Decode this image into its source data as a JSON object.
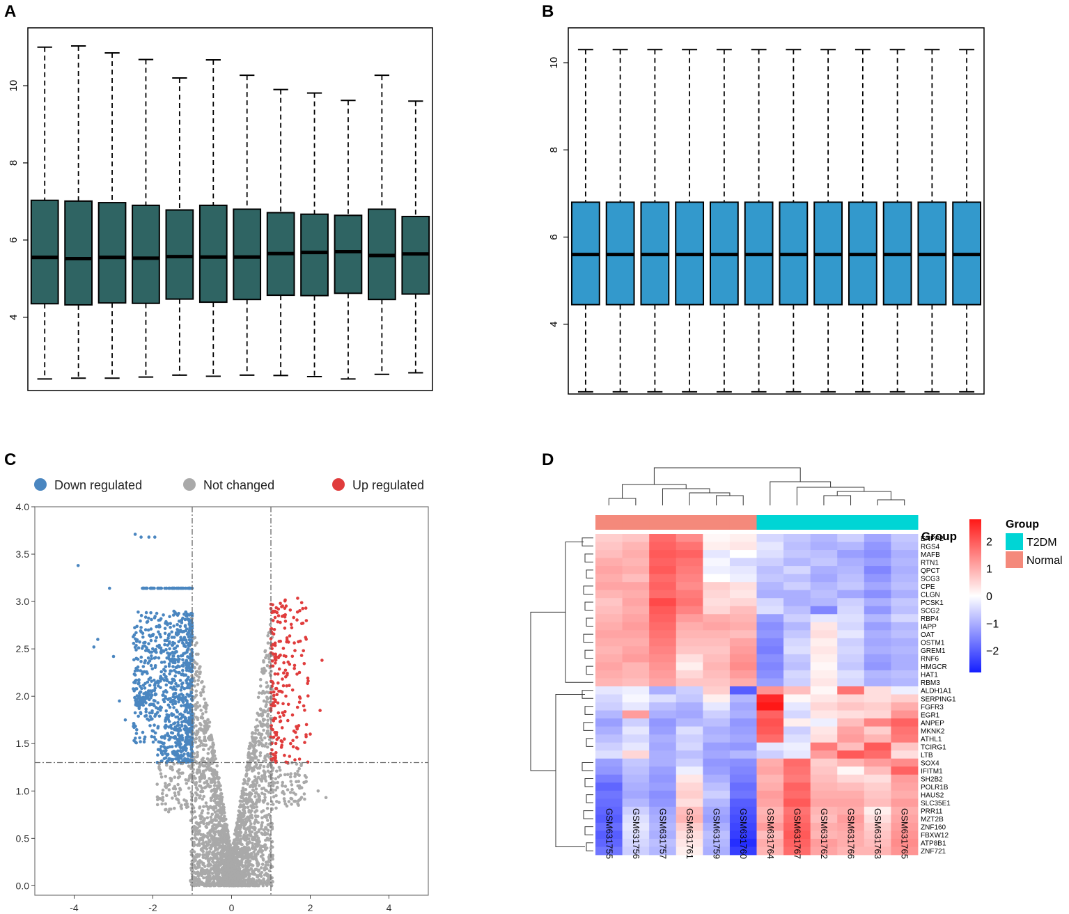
{
  "panels": {
    "a": "A",
    "b": "B",
    "c": "C",
    "d": "D"
  },
  "chart_data": [
    {
      "panel": "A",
      "type": "box",
      "title": "",
      "xlabel": "",
      "ylabel": "",
      "ylim": [
        2.1,
        11.5
      ],
      "yticks": [
        "4",
        "6",
        "8",
        "10"
      ],
      "box_color": "#2f6463",
      "boxes": [
        {
          "min": 2.4,
          "q1": 4.35,
          "median": 5.55,
          "q3": 7.03,
          "max": 11.0
        },
        {
          "min": 2.42,
          "q1": 4.32,
          "median": 5.52,
          "q3": 7.01,
          "max": 11.03
        },
        {
          "min": 2.42,
          "q1": 4.37,
          "median": 5.55,
          "q3": 6.97,
          "max": 10.85
        },
        {
          "min": 2.45,
          "q1": 4.36,
          "median": 5.53,
          "q3": 6.9,
          "max": 10.68
        },
        {
          "min": 2.5,
          "q1": 4.47,
          "median": 5.57,
          "q3": 6.78,
          "max": 10.2
        },
        {
          "min": 2.47,
          "q1": 4.39,
          "median": 5.56,
          "q3": 6.9,
          "max": 10.67
        },
        {
          "min": 2.5,
          "q1": 4.46,
          "median": 5.56,
          "q3": 6.8,
          "max": 10.27
        },
        {
          "min": 2.49,
          "q1": 4.57,
          "median": 5.65,
          "q3": 6.71,
          "max": 9.9
        },
        {
          "min": 2.46,
          "q1": 4.56,
          "median": 5.68,
          "q3": 6.67,
          "max": 9.81
        },
        {
          "min": 2.4,
          "q1": 4.62,
          "median": 5.7,
          "q3": 6.64,
          "max": 9.62
        },
        {
          "min": 2.52,
          "q1": 4.46,
          "median": 5.6,
          "q3": 6.8,
          "max": 10.27
        },
        {
          "min": 2.56,
          "q1": 4.6,
          "median": 5.64,
          "q3": 6.61,
          "max": 9.6
        }
      ]
    },
    {
      "panel": "B",
      "type": "box",
      "title": "",
      "xlabel": "",
      "ylabel": "",
      "ylim": [
        2.4,
        10.8
      ],
      "yticks": [
        "4",
        "6",
        "8",
        "10"
      ],
      "box_color": "#3399cc",
      "boxes": [
        {
          "min": 2.45,
          "q1": 4.45,
          "median": 5.6,
          "q3": 6.8,
          "max": 10.3
        },
        {
          "min": 2.45,
          "q1": 4.45,
          "median": 5.6,
          "q3": 6.8,
          "max": 10.3
        },
        {
          "min": 2.45,
          "q1": 4.45,
          "median": 5.6,
          "q3": 6.8,
          "max": 10.3
        },
        {
          "min": 2.45,
          "q1": 4.45,
          "median": 5.6,
          "q3": 6.8,
          "max": 10.3
        },
        {
          "min": 2.45,
          "q1": 4.45,
          "median": 5.6,
          "q3": 6.8,
          "max": 10.3
        },
        {
          "min": 2.45,
          "q1": 4.45,
          "median": 5.6,
          "q3": 6.8,
          "max": 10.3
        },
        {
          "min": 2.45,
          "q1": 4.45,
          "median": 5.6,
          "q3": 6.8,
          "max": 10.3
        },
        {
          "min": 2.45,
          "q1": 4.45,
          "median": 5.6,
          "q3": 6.8,
          "max": 10.3
        },
        {
          "min": 2.45,
          "q1": 4.45,
          "median": 5.6,
          "q3": 6.8,
          "max": 10.3
        },
        {
          "min": 2.45,
          "q1": 4.45,
          "median": 5.6,
          "q3": 6.8,
          "max": 10.3
        },
        {
          "min": 2.45,
          "q1": 4.45,
          "median": 5.6,
          "q3": 6.8,
          "max": 10.3
        },
        {
          "min": 2.45,
          "q1": 4.45,
          "median": 5.6,
          "q3": 6.8,
          "max": 10.3
        }
      ]
    },
    {
      "panel": "C",
      "type": "scatter",
      "title": "",
      "xlabel": "",
      "ylabel": "",
      "xlim": [
        -5,
        5
      ],
      "ylim": [
        -0.1,
        4.0
      ],
      "xticks": [
        "-4",
        "-2",
        "0",
        "2",
        "4"
      ],
      "yticks": [
        "0.0",
        "0.5",
        "1.0",
        "1.5",
        "2.0",
        "2.5",
        "3.0",
        "3.5",
        "4.0"
      ],
      "fc_threshold": 1,
      "p_threshold": 1.3,
      "legend": [
        {
          "label": "Down regulated",
          "color": "#4a86c0"
        },
        {
          "label": "Not changed",
          "color": "#a9a9a9"
        },
        {
          "label": "Up regulated",
          "color": "#e03c3c"
        }
      ],
      "outliers": [
        {
          "x": -3.9,
          "y": 3.38,
          "group": "down"
        },
        {
          "x": -2.45,
          "y": 3.71,
          "group": "down"
        },
        {
          "x": -2.3,
          "y": 3.68,
          "group": "down"
        },
        {
          "x": -2.1,
          "y": 3.68,
          "group": "down"
        },
        {
          "x": -1.95,
          "y": 3.68,
          "group": "down"
        },
        {
          "x": -3.5,
          "y": 2.52,
          "group": "down"
        },
        {
          "x": -3.4,
          "y": 2.6,
          "group": "down"
        },
        {
          "x": -3.1,
          "y": 3.14,
          "group": "down"
        },
        {
          "x": -3.0,
          "y": 2.42,
          "group": "down"
        },
        {
          "x": -2.85,
          "y": 1.95,
          "group": "down"
        },
        {
          "x": -2.7,
          "y": 1.75,
          "group": "down"
        },
        {
          "x": 2.3,
          "y": 2.38,
          "group": "up"
        },
        {
          "x": 2.25,
          "y": 1.85,
          "group": "up"
        },
        {
          "x": 2.0,
          "y": 1.6,
          "group": "up"
        },
        {
          "x": 2.4,
          "y": 0.93,
          "group": "ns"
        },
        {
          "x": 2.2,
          "y": 1.0,
          "group": "ns"
        },
        {
          "x": -1.6,
          "y": 0.78,
          "group": "ns"
        },
        {
          "x": 1.7,
          "y": 0.85,
          "group": "ns"
        }
      ]
    },
    {
      "panel": "D",
      "type": "heatmap",
      "title": "",
      "samples": [
        "GSM631755",
        "GSM631756",
        "GSM631757",
        "GSM631761",
        "GSM631759",
        "GSM631760",
        "GSM631764",
        "GSM631767",
        "GSM631762",
        "GSM631766",
        "GSM631763",
        "GSM631765"
      ],
      "groups": [
        "Normal",
        "Normal",
        "Normal",
        "Normal",
        "Normal",
        "Normal",
        "T2DM",
        "T2DM",
        "T2DM",
        "T2DM",
        "T2DM",
        "T2DM"
      ],
      "group_row_label": "Group",
      "group_legend": {
        "title": "Group",
        "items": [
          {
            "label": "T2DM",
            "color": "#00d5d5"
          },
          {
            "label": "Normal",
            "color": "#f4897b"
          }
        ]
      },
      "colorbar": {
        "ticks": [
          "2",
          "1",
          "0",
          "−1",
          "−2"
        ],
        "values": [
          2,
          1,
          0,
          -1,
          -2
        ],
        "range": [
          -2.8,
          2.8
        ]
      },
      "genes": [
        "ENPP2",
        "RGS4",
        "MAFB",
        "RTN1",
        "QPCT",
        "SCG3",
        "CPE",
        "CLGN",
        "PCSK1",
        "SCG2",
        "RBP4",
        "IAPP",
        "OAT",
        "OSTM1",
        "GREM1",
        "RNF6",
        "HMGCR",
        "HAT1",
        "RBM3",
        "ALDH1A1",
        "SERPING1",
        "FGFR3",
        "EGR1",
        "ANPEP",
        "MKNK2",
        "ATHL1",
        "TCIRG1",
        "LTB",
        "SOX4",
        "IFITM1",
        "SH2B2",
        "POLR1B",
        "HAUS2",
        "SLC35E1",
        "PRR11",
        "MZT2B",
        "ZNF160",
        "FBXW12",
        "ATP8B1",
        "ZNF721"
      ],
      "values": [
        [
          0.6,
          0.7,
          1.8,
          1.4,
          0.1,
          0.2,
          -0.5,
          -0.7,
          -0.9,
          -0.6,
          -1.1,
          -0.7
        ],
        [
          0.7,
          0.9,
          1.9,
          1.7,
          0.2,
          0.3,
          -0.3,
          -0.8,
          -1.0,
          -0.9,
          -1.3,
          -0.8
        ],
        [
          0.8,
          1.0,
          2.0,
          1.9,
          -0.3,
          0.0,
          -0.4,
          -0.7,
          -0.8,
          -1.2,
          -1.4,
          -1.0
        ],
        [
          1.0,
          0.9,
          1.9,
          1.7,
          -0.1,
          -0.5,
          -0.6,
          -0.9,
          -0.7,
          -1.0,
          -1.2,
          -0.9
        ],
        [
          1.1,
          1.0,
          2.0,
          1.6,
          -0.2,
          -0.3,
          -0.8,
          -0.5,
          -1.0,
          -0.9,
          -1.5,
          -1.0
        ],
        [
          1.0,
          0.8,
          1.8,
          1.5,
          0.0,
          -0.2,
          -0.7,
          -0.8,
          -1.1,
          -0.8,
          -1.3,
          -0.9
        ],
        [
          1.1,
          1.1,
          1.9,
          1.4,
          0.6,
          0.4,
          -0.9,
          -0.6,
          -0.9,
          -0.7,
          -1.1,
          -0.8
        ],
        [
          0.9,
          1.0,
          1.8,
          1.6,
          0.5,
          0.3,
          -1.0,
          -1.0,
          -0.8,
          -1.1,
          -1.4,
          -1.0
        ],
        [
          0.7,
          1.1,
          2.2,
          1.7,
          0.4,
          0.5,
          -0.5,
          -1.0,
          -0.9,
          -0.6,
          -1.0,
          -0.7
        ],
        [
          0.8,
          1.0,
          2.0,
          1.5,
          0.5,
          0.8,
          -0.4,
          -0.8,
          -1.5,
          -0.5,
          -1.3,
          -0.8
        ],
        [
          0.9,
          1.1,
          1.9,
          1.2,
          1.0,
          0.9,
          -1.2,
          -0.6,
          -0.3,
          -0.4,
          -0.9,
          -0.5
        ],
        [
          1.0,
          1.2,
          1.8,
          1.0,
          1.1,
          1.0,
          -1.4,
          -0.9,
          0.3,
          -0.5,
          -1.2,
          -0.9
        ],
        [
          1.1,
          1.1,
          1.7,
          0.9,
          0.9,
          0.8,
          -1.3,
          -0.7,
          0.4,
          -0.3,
          -1.0,
          -0.8
        ],
        [
          1.0,
          1.0,
          1.6,
          0.8,
          0.8,
          1.1,
          -1.5,
          -0.5,
          0.2,
          -0.6,
          -1.1,
          -1.0
        ],
        [
          0.9,
          1.1,
          1.5,
          0.7,
          0.7,
          1.2,
          -1.6,
          -0.4,
          0.3,
          -0.5,
          -1.0,
          -0.9
        ],
        [
          1.0,
          1.2,
          1.4,
          0.4,
          0.8,
          1.3,
          -1.4,
          -0.7,
          0.2,
          -0.6,
          -1.2,
          -1.0
        ],
        [
          1.1,
          0.9,
          1.3,
          0.2,
          0.9,
          1.4,
          -1.5,
          -0.8,
          0.1,
          -0.7,
          -1.3,
          -1.0
        ],
        [
          1.0,
          0.9,
          1.2,
          0.5,
          0.8,
          1.2,
          -1.4,
          -0.5,
          0.2,
          -0.4,
          -0.9,
          -0.8
        ],
        [
          0.9,
          0.8,
          1.1,
          0.7,
          0.7,
          1.0,
          -1.2,
          -0.6,
          0.3,
          -0.5,
          -1.0,
          -0.9
        ],
        [
          -0.3,
          -0.2,
          -1.0,
          -0.6,
          0.6,
          -2.0,
          1.3,
          0.8,
          0.1,
          1.7,
          0.4,
          -0.2
        ],
        [
          -0.5,
          -0.1,
          -0.4,
          -0.7,
          0.2,
          -0.9,
          2.6,
          0.1,
          0.3,
          0.5,
          0.4,
          0.6
        ],
        [
          -0.6,
          -0.3,
          -0.8,
          -1.0,
          -0.3,
          -1.1,
          2.8,
          -0.3,
          0.5,
          0.7,
          0.6,
          1.0
        ],
        [
          -0.9,
          1.2,
          -1.0,
          -1.1,
          -0.6,
          -1.0,
          1.9,
          -0.5,
          0.3,
          0.4,
          0.5,
          1.3
        ],
        [
          -1.2,
          -0.6,
          -1.3,
          -0.9,
          -0.8,
          -1.3,
          2.1,
          0.2,
          -0.2,
          0.8,
          1.5,
          1.9
        ],
        [
          -1.0,
          -0.3,
          -1.2,
          -0.4,
          -1.0,
          -1.2,
          2.0,
          -0.6,
          0.3,
          1.1,
          0.6,
          1.7
        ],
        [
          -0.8,
          -0.5,
          -1.0,
          -0.6,
          -0.9,
          -1.1,
          1.8,
          -0.4,
          0.4,
          1.2,
          0.9,
          1.6
        ],
        [
          -0.6,
          -0.3,
          -1.1,
          -0.5,
          -1.2,
          -1.3,
          -0.3,
          -0.2,
          1.6,
          0.8,
          2.0,
          0.7
        ],
        [
          -0.4,
          0.5,
          -1.0,
          -0.8,
          -1.1,
          -0.9,
          -0.6,
          -0.3,
          1.2,
          2.0,
          1.8,
          0.4
        ],
        [
          -1.2,
          -0.7,
          -1.0,
          -0.6,
          -1.3,
          -1.4,
          1.0,
          1.8,
          0.6,
          0.9,
          1.2,
          1.4
        ],
        [
          -1.3,
          -0.8,
          -1.2,
          -0.2,
          -1.2,
          -1.5,
          1.1,
          1.7,
          0.7,
          0.1,
          0.8,
          1.9
        ],
        [
          -1.6,
          -0.9,
          -1.3,
          0.3,
          -1.0,
          -1.6,
          0.9,
          1.6,
          0.8,
          0.5,
          0.4,
          1.2
        ],
        [
          -1.9,
          -1.0,
          -1.2,
          0.5,
          -0.8,
          -1.8,
          1.0,
          1.9,
          0.9,
          0.8,
          0.6,
          1.1
        ],
        [
          -1.7,
          -1.1,
          -1.4,
          0.6,
          -0.6,
          -1.7,
          1.2,
          1.8,
          1.0,
          1.0,
          0.7,
          1.0
        ],
        [
          -1.8,
          -0.9,
          -1.3,
          0.4,
          -0.9,
          -2.0,
          1.1,
          2.0,
          1.1,
          1.1,
          0.8,
          1.2
        ],
        [
          -1.9,
          -0.6,
          -1.1,
          0.8,
          -1.1,
          -2.1,
          0.9,
          1.7,
          0.9,
          1.0,
          0.2,
          1.0
        ],
        [
          -2.0,
          -0.4,
          -1.0,
          0.9,
          -1.2,
          -2.2,
          1.0,
          1.8,
          0.8,
          1.2,
          0.4,
          1.1
        ],
        [
          -1.8,
          -0.3,
          -0.9,
          0.6,
          -1.0,
          -2.3,
          1.2,
          1.9,
          1.0,
          1.1,
          0.6,
          1.2
        ],
        [
          -2.0,
          -0.4,
          -1.0,
          0.4,
          -0.8,
          -2.4,
          0.8,
          2.0,
          0.9,
          1.0,
          0.7,
          1.3
        ],
        [
          -1.9,
          -0.5,
          -0.8,
          0.3,
          -0.9,
          -2.6,
          1.0,
          1.9,
          1.2,
          1.0,
          0.8,
          1.4
        ],
        [
          -1.7,
          -0.6,
          -0.9,
          0.2,
          -1.0,
          -2.4,
          0.9,
          1.8,
          1.1,
          0.9,
          0.9,
          1.3
        ]
      ]
    }
  ]
}
